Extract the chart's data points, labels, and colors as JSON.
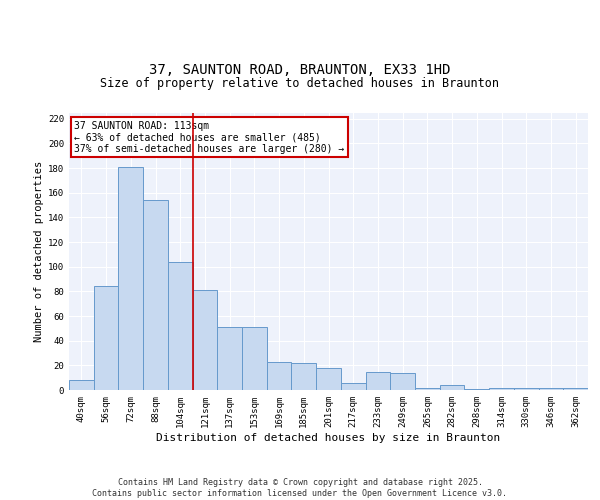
{
  "title": "37, SAUNTON ROAD, BRAUNTON, EX33 1HD",
  "subtitle": "Size of property relative to detached houses in Braunton",
  "xlabel": "Distribution of detached houses by size in Braunton",
  "ylabel": "Number of detached properties",
  "categories": [
    "40sqm",
    "56sqm",
    "72sqm",
    "88sqm",
    "104sqm",
    "121sqm",
    "137sqm",
    "153sqm",
    "169sqm",
    "185sqm",
    "201sqm",
    "217sqm",
    "233sqm",
    "249sqm",
    "265sqm",
    "282sqm",
    "298sqm",
    "314sqm",
    "330sqm",
    "346sqm",
    "362sqm"
  ],
  "values": [
    8,
    84,
    181,
    154,
    104,
    81,
    51,
    51,
    23,
    22,
    18,
    6,
    15,
    14,
    2,
    4,
    1,
    2,
    2,
    2,
    2
  ],
  "bar_color": "#c7d9f0",
  "bar_edge_color": "#6699cc",
  "background_color": "#eef2fb",
  "grid_color": "#ffffff",
  "vline_x": 4.5,
  "vline_color": "#cc0000",
  "annotation_text": "37 SAUNTON ROAD: 113sqm\n← 63% of detached houses are smaller (485)\n37% of semi-detached houses are larger (280) →",
  "annotation_box_color": "#cc0000",
  "ylim": [
    0,
    225
  ],
  "yticks": [
    0,
    20,
    40,
    60,
    80,
    100,
    120,
    140,
    160,
    180,
    200,
    220
  ],
  "footer_text": "Contains HM Land Registry data © Crown copyright and database right 2025.\nContains public sector information licensed under the Open Government Licence v3.0.",
  "title_fontsize": 10,
  "subtitle_fontsize": 8.5,
  "xlabel_fontsize": 8,
  "ylabel_fontsize": 7.5,
  "tick_fontsize": 6.5,
  "annotation_fontsize": 7,
  "footer_fontsize": 6
}
